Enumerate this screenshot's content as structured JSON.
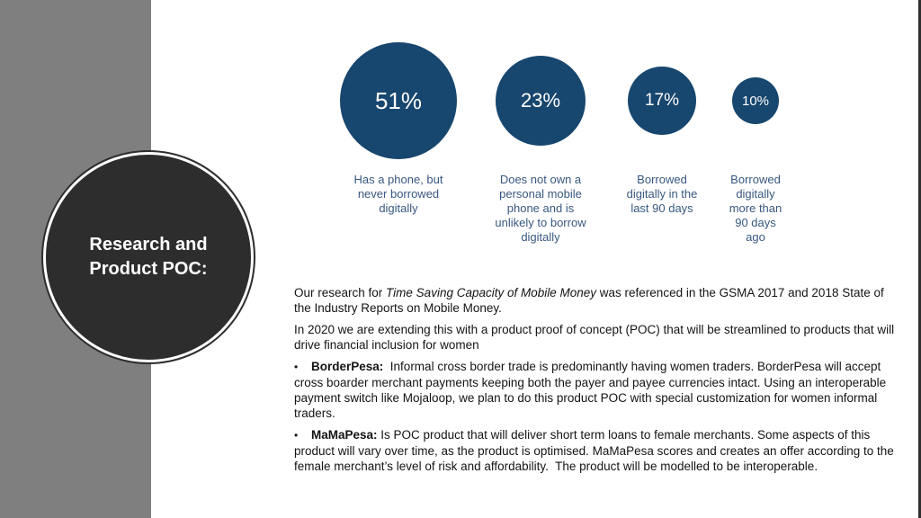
{
  "slide": {
    "sidebar_title": "Research and\nProduct POC:"
  },
  "stats": {
    "circle_color": "#17466e",
    "label_color": "#385880",
    "circles": [
      {
        "pct": "51%",
        "value": 51,
        "label": "Has a phone, but\nnever borrowed\ndigitally"
      },
      {
        "pct": "23%",
        "value": 23,
        "label": "Does not own a\npersonal mobile\nphone and is\nunlikely to borrow\ndigitally"
      },
      {
        "pct": "17%",
        "value": 17,
        "label": "Borrowed\ndigitally in the\nlast 90 days"
      },
      {
        "pct": "10%",
        "value": 10,
        "label": "Borrowed\ndigitally\nmore than\n90 days\nago"
      }
    ]
  },
  "body": {
    "p1_before_italic": "Our research for ",
    "p1_italic": "Time Saving Capacity of Mobile Money",
    "p1_after_italic": " was referenced in the GSMA 2017 and 2018 State of the Industry Reports on Mobile Money.",
    "p2": "In 2020 we are extending this with a product proof of concept (POC) that will be streamlined to products that will drive financial inclusion for women",
    "bullet_char": "•",
    "bullets": [
      {
        "bold": "BorderPesa:",
        "text": "  Informal cross border trade is predominantly having women traders. BorderPesa will accept cross boarder merchant payments keeping both the payer and payee currencies intact. Using an interoperable payment switch like Mojaloop, we plan to do this product POC with special customization for women informal traders."
      },
      {
        "bold": "MaMaPesa:",
        "text": " Is POC product that will deliver short term loans to female merchants. Some aspects of this product will vary over time, as the product is optimised. MaMaPesa scores and creates an offer according to the female merchant’s level of risk and affordability.  The product will be modelled to be interoperable."
      }
    ]
  },
  "colors": {
    "gray_bar": "#7f7f7f",
    "title_circle_fill": "#2d2d2d",
    "slide_background": "#ffffff"
  }
}
